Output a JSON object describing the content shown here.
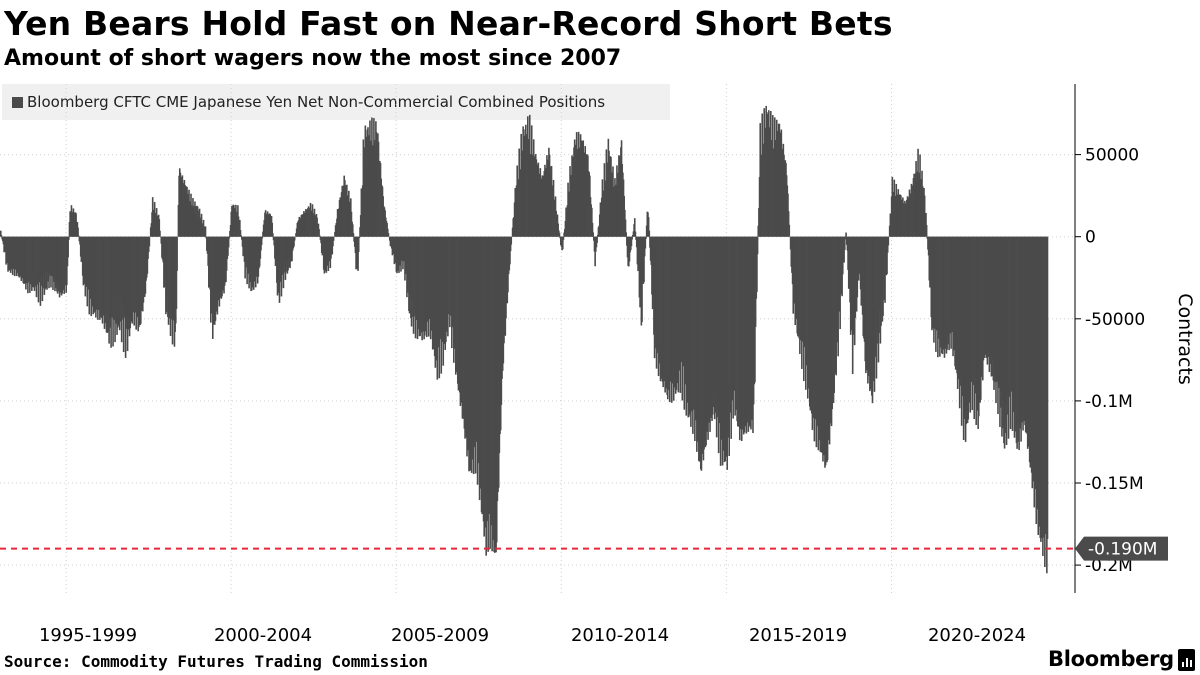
{
  "title": "Yen Bears Hold Fast on Near-Record Short Bets",
  "subtitle": "Amount of short wagers now the most since 2007",
  "legend": {
    "label": "Bloomberg CFTC CME Japanese Yen Net Non-Commercial Combined Positions"
  },
  "source": "Source: Commodity Futures Trading Commission",
  "brand": "Bloomberg",
  "colors": {
    "bar": "#4b4b4b",
    "grid": "#d0d0d0",
    "marker_line": "#e8283c",
    "callout_bg": "#4b4b4b",
    "callout_text": "#ffffff",
    "legend_bg": "#f0f0f0"
  },
  "chart_data": {
    "type": "bar",
    "title": "Yen Bears Hold Fast on Near-Record Short Bets",
    "subtitle": "Amount of short wagers now the most since 2007",
    "ylabel": "Contracts",
    "xlabel": "",
    "x_domain": [
      1993.0,
      2024.8
    ],
    "ylim": [
      -217000,
      93000
    ],
    "y_ticks": [
      {
        "value": 50000,
        "label": "50000"
      },
      {
        "value": 0,
        "label": "0"
      },
      {
        "value": -50000,
        "label": "-50000"
      },
      {
        "value": -100000,
        "label": "-0.1M"
      },
      {
        "value": -150000,
        "label": "-0.15M"
      },
      {
        "value": -200000,
        "label": "-0.2M"
      }
    ],
    "x_ticks": [
      {
        "value": 1998.0,
        "label": "1995-1999"
      },
      {
        "value": 2003.0,
        "label": "2000-2004"
      },
      {
        "value": 2008.0,
        "label": "2005-2009"
      },
      {
        "value": 2013.0,
        "label": "2010-2014"
      },
      {
        "value": 2018.0,
        "label": "2015-2019"
      },
      {
        "value": 2023.0,
        "label": "2020-2024"
      }
    ],
    "grid": true,
    "legend_position": "top-left",
    "latest_value": -190000,
    "latest_label": "-0.190M",
    "series": [
      {
        "name": "Bloomberg CFTC CME Japanese Yen Net Non-Commercial Combined Positions",
        "points": [
          [
            1993.0,
            3000
          ],
          [
            1993.2,
            -18000
          ],
          [
            1993.5,
            -22000
          ],
          [
            1993.8,
            -30000
          ],
          [
            1994.0,
            -28000
          ],
          [
            1994.2,
            -33000
          ],
          [
            1994.5,
            -25000
          ],
          [
            1994.8,
            -35000
          ],
          [
            1995.0,
            -30000
          ],
          [
            1995.1,
            17000
          ],
          [
            1995.3,
            12000
          ],
          [
            1995.5,
            -25000
          ],
          [
            1995.7,
            -40000
          ],
          [
            1995.9,
            -45000
          ],
          [
            1996.1,
            -50000
          ],
          [
            1996.3,
            -58000
          ],
          [
            1996.6,
            -48000
          ],
          [
            1996.8,
            -60000
          ],
          [
            1997.0,
            -45000
          ],
          [
            1997.2,
            -55000
          ],
          [
            1997.4,
            -30000
          ],
          [
            1997.6,
            20000
          ],
          [
            1997.8,
            10000
          ],
          [
            1998.0,
            -40000
          ],
          [
            1998.2,
            -55000
          ],
          [
            1998.3,
            -60000
          ],
          [
            1998.4,
            40000
          ],
          [
            1998.6,
            30000
          ],
          [
            1998.8,
            20000
          ],
          [
            1999.0,
            15000
          ],
          [
            1999.2,
            5000
          ],
          [
            1999.4,
            -55000
          ],
          [
            1999.6,
            -40000
          ],
          [
            1999.8,
            -30000
          ],
          [
            2000.0,
            18000
          ],
          [
            2000.2,
            15000
          ],
          [
            2000.4,
            -20000
          ],
          [
            2000.6,
            -30000
          ],
          [
            2000.8,
            -25000
          ],
          [
            2001.0,
            15000
          ],
          [
            2001.2,
            12000
          ],
          [
            2001.4,
            -35000
          ],
          [
            2001.6,
            -22000
          ],
          [
            2001.8,
            -15000
          ],
          [
            2002.0,
            10000
          ],
          [
            2002.2,
            15000
          ],
          [
            2002.4,
            18000
          ],
          [
            2002.6,
            10000
          ],
          [
            2002.8,
            -20000
          ],
          [
            2003.0,
            -15000
          ],
          [
            2003.2,
            15000
          ],
          [
            2003.4,
            35000
          ],
          [
            2003.6,
            20000
          ],
          [
            2003.8,
            -25000
          ],
          [
            2004.0,
            55000
          ],
          [
            2004.2,
            60000
          ],
          [
            2004.4,
            63000
          ],
          [
            2004.6,
            20000
          ],
          [
            2004.8,
            -5000
          ],
          [
            2005.0,
            -20000
          ],
          [
            2005.2,
            -15000
          ],
          [
            2005.4,
            -45000
          ],
          [
            2005.6,
            -55000
          ],
          [
            2005.8,
            -60000
          ],
          [
            2006.0,
            -52000
          ],
          [
            2006.2,
            -75000
          ],
          [
            2006.4,
            -65000
          ],
          [
            2006.6,
            -45000
          ],
          [
            2006.8,
            -80000
          ],
          [
            2007.0,
            -110000
          ],
          [
            2007.2,
            -140000
          ],
          [
            2007.4,
            -130000
          ],
          [
            2007.6,
            -165000
          ],
          [
            2007.7,
            -180000
          ],
          [
            2007.8,
            -175000
          ],
          [
            2008.0,
            -190000
          ],
          [
            2008.2,
            -80000
          ],
          [
            2008.4,
            -20000
          ],
          [
            2008.6,
            30000
          ],
          [
            2008.8,
            55000
          ],
          [
            2009.0,
            62000
          ],
          [
            2009.2,
            45000
          ],
          [
            2009.4,
            35000
          ],
          [
            2009.6,
            50000
          ],
          [
            2009.8,
            20000
          ],
          [
            2010.0,
            -10000
          ],
          [
            2010.2,
            30000
          ],
          [
            2010.4,
            55000
          ],
          [
            2010.6,
            58000
          ],
          [
            2010.8,
            45000
          ],
          [
            2011.0,
            -15000
          ],
          [
            2011.2,
            25000
          ],
          [
            2011.4,
            50000
          ],
          [
            2011.6,
            30000
          ],
          [
            2011.8,
            55000
          ],
          [
            2012.0,
            -20000
          ],
          [
            2012.2,
            10000
          ],
          [
            2012.4,
            -50000
          ],
          [
            2012.6,
            20000
          ],
          [
            2012.8,
            -65000
          ],
          [
            2013.0,
            -85000
          ],
          [
            2013.2,
            -95000
          ],
          [
            2013.4,
            -90000
          ],
          [
            2013.6,
            -80000
          ],
          [
            2013.8,
            -100000
          ],
          [
            2014.0,
            -110000
          ],
          [
            2014.2,
            -140000
          ],
          [
            2014.4,
            -120000
          ],
          [
            2014.6,
            -100000
          ],
          [
            2014.8,
            -125000
          ],
          [
            2015.0,
            -130000
          ],
          [
            2015.2,
            -95000
          ],
          [
            2015.4,
            -120000
          ],
          [
            2015.6,
            -115000
          ],
          [
            2015.8,
            -110000
          ],
          [
            2016.0,
            55000
          ],
          [
            2016.2,
            70000
          ],
          [
            2016.4,
            60000
          ],
          [
            2016.6,
            65000
          ],
          [
            2016.8,
            40000
          ],
          [
            2017.0,
            -40000
          ],
          [
            2017.2,
            -60000
          ],
          [
            2017.4,
            -80000
          ],
          [
            2017.6,
            -110000
          ],
          [
            2017.8,
            -125000
          ],
          [
            2018.0,
            -140000
          ],
          [
            2018.2,
            -100000
          ],
          [
            2018.4,
            -50000
          ],
          [
            2018.6,
            3000
          ],
          [
            2018.8,
            -70000
          ],
          [
            2019.0,
            -20000
          ],
          [
            2019.2,
            -80000
          ],
          [
            2019.4,
            -95000
          ],
          [
            2019.6,
            -60000
          ],
          [
            2019.8,
            -30000
          ],
          [
            2020.0,
            30000
          ],
          [
            2020.2,
            25000
          ],
          [
            2020.4,
            20000
          ],
          [
            2020.6,
            30000
          ],
          [
            2020.8,
            45000
          ],
          [
            2021.0,
            20000
          ],
          [
            2021.2,
            -50000
          ],
          [
            2021.4,
            -65000
          ],
          [
            2021.6,
            -70000
          ],
          [
            2021.8,
            -60000
          ],
          [
            2022.0,
            -85000
          ],
          [
            2022.2,
            -115000
          ],
          [
            2022.4,
            -90000
          ],
          [
            2022.6,
            -110000
          ],
          [
            2022.8,
            -70000
          ],
          [
            2023.0,
            -80000
          ],
          [
            2023.2,
            -95000
          ],
          [
            2023.4,
            -120000
          ],
          [
            2023.6,
            -100000
          ],
          [
            2023.8,
            -125000
          ],
          [
            2024.0,
            -110000
          ],
          [
            2024.2,
            -140000
          ],
          [
            2024.4,
            -170000
          ],
          [
            2024.6,
            -185000
          ],
          [
            2024.7,
            -190000
          ]
        ]
      }
    ]
  }
}
